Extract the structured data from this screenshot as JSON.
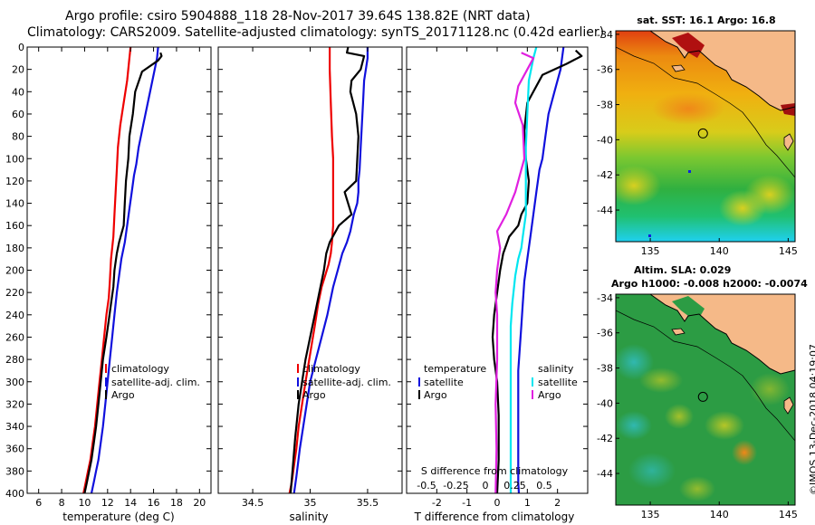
{
  "header": {
    "line1": "Argo profile: csiro 5904888_118 28-Nov-2017 39.64S 138.82E (NRT data)",
    "line2": "Climatology: CARS2009. Satellite-adjusted climatology: synTS_20171128.nc (0.42d earlier)"
  },
  "credit": "©IMOS 13-Dec-2018 04:19:07",
  "colors": {
    "climatology": "#ee0000",
    "satellite": "#1010dd",
    "argo": "#000000",
    "satellite_salinity": "#00e6f0",
    "argo_salinity": "#e020e0",
    "land": "#f5b988",
    "sla_water": "#2c9c44"
  },
  "chart_data": [
    {
      "type": "line",
      "name": "temperature-profile",
      "xlabel": "temperature (deg C)",
      "ylabel": "",
      "xlim": [
        5,
        21
      ],
      "ylim": [
        400,
        0
      ],
      "xticks": [
        6,
        8,
        10,
        12,
        14,
        16,
        18,
        20
      ],
      "yticks": [
        0,
        20,
        40,
        60,
        80,
        100,
        120,
        140,
        160,
        180,
        200,
        220,
        240,
        260,
        280,
        300,
        320,
        340,
        360,
        380,
        400
      ],
      "legend": [
        "climatology",
        "satellite-adj. clim.",
        "Argo"
      ],
      "series": [
        {
          "name": "climatology",
          "color": "#ee0000",
          "x": [
            14.0,
            13.9,
            13.7,
            13.4,
            13.1,
            12.9,
            12.8,
            12.7,
            12.6,
            12.5,
            12.3,
            12.2,
            12.1,
            11.9,
            11.7,
            11.5,
            11.3,
            11.1,
            10.9,
            10.7,
            10.5,
            10.3,
            10.1,
            9.9
          ],
          "y": [
            0,
            10,
            30,
            50,
            70,
            90,
            110,
            130,
            150,
            170,
            190,
            210,
            225,
            240,
            260,
            280,
            300,
            320,
            340,
            355,
            370,
            380,
            390,
            400
          ]
        },
        {
          "name": "satellite-adj. clim.",
          "color": "#1010dd",
          "x": [
            16.4,
            16.3,
            15.9,
            15.5,
            15.1,
            14.7,
            14.5,
            14.3,
            14.1,
            13.9,
            13.7,
            13.5,
            13.2,
            13.0,
            12.8,
            12.6,
            12.4,
            12.2,
            12.0,
            11.8,
            11.6,
            11.4,
            11.2,
            11.0,
            10.8,
            10.7,
            10.6
          ],
          "y": [
            0,
            10,
            30,
            50,
            70,
            90,
            105,
            115,
            130,
            145,
            160,
            175,
            190,
            205,
            220,
            240,
            260,
            280,
            300,
            320,
            340,
            355,
            370,
            380,
            390,
            395,
            400
          ]
        },
        {
          "name": "Argo",
          "color": "#000000",
          "x": [
            16.6,
            16.7,
            16.4,
            15.0,
            14.4,
            14.2,
            13.9,
            13.8,
            13.6,
            13.5,
            13.4,
            13.0,
            12.8,
            12.6,
            12.5,
            12.3,
            12.1,
            11.9,
            11.6,
            11.4,
            11.2,
            11.0,
            10.8,
            10.6,
            10.4,
            10.2,
            10.0
          ],
          "y": [
            5,
            8,
            12,
            22,
            40,
            60,
            80,
            100,
            120,
            140,
            160,
            175,
            185,
            200,
            215,
            230,
            245,
            260,
            280,
            300,
            320,
            340,
            355,
            370,
            380,
            390,
            400
          ]
        }
      ]
    },
    {
      "type": "line",
      "name": "salinity-profile",
      "xlabel": "salinity",
      "xlim": [
        34.2,
        35.8
      ],
      "ylim": [
        400,
        0
      ],
      "xticks": [
        34.5,
        35,
        35.5
      ],
      "legend": [
        "climatology",
        "satellite-adj. clim.",
        "Argo"
      ],
      "series": [
        {
          "name": "climatology",
          "color": "#ee0000",
          "x": [
            35.17,
            35.17,
            35.18,
            35.19,
            35.2,
            35.2,
            35.2,
            35.2,
            35.19,
            35.18,
            35.16,
            35.13,
            35.1,
            35.07,
            35.04,
            35.0,
            34.96,
            34.93,
            34.9,
            34.88,
            34.86,
            34.84,
            34.82
          ],
          "y": [
            0,
            20,
            50,
            80,
            100,
            120,
            140,
            160,
            175,
            185,
            195,
            205,
            215,
            230,
            250,
            275,
            300,
            320,
            340,
            360,
            375,
            390,
            400
          ]
        },
        {
          "name": "satellite-adj. clim.",
          "color": "#1010dd",
          "x": [
            35.5,
            35.5,
            35.47,
            35.46,
            35.45,
            35.44,
            35.43,
            35.42,
            35.42,
            35.41,
            35.38,
            35.35,
            35.32,
            35.28,
            35.24,
            35.2,
            35.15,
            35.1,
            35.05,
            35.0,
            34.97,
            34.94,
            34.91,
            34.88,
            34.86
          ],
          "y": [
            0,
            10,
            30,
            50,
            70,
            90,
            110,
            120,
            130,
            140,
            150,
            165,
            175,
            185,
            200,
            215,
            240,
            260,
            280,
            300,
            320,
            340,
            360,
            385,
            400
          ]
        },
        {
          "name": "Argo",
          "color": "#000000",
          "x": [
            35.33,
            35.32,
            35.47,
            35.44,
            35.36,
            35.35,
            35.4,
            35.42,
            35.4,
            35.3,
            35.36,
            35.25,
            35.17,
            35.14,
            35.12,
            35.08,
            35.04,
            35.0,
            34.96,
            34.93,
            34.9,
            34.87,
            34.85,
            34.83
          ],
          "y": [
            0,
            5,
            8,
            20,
            30,
            40,
            60,
            80,
            120,
            130,
            150,
            160,
            175,
            185,
            200,
            220,
            240,
            260,
            280,
            300,
            320,
            350,
            375,
            400
          ]
        }
      ]
    },
    {
      "type": "line",
      "name": "difference-profile",
      "xlabel": "T difference from climatology",
      "xlabel_top": "S difference from climatology",
      "xlim": [
        -3,
        3
      ],
      "ylim": [
        400,
        0
      ],
      "xticks": [
        -2,
        -1,
        0,
        1,
        2
      ],
      "xticks_top": [
        -0.5,
        -0.25,
        0,
        0.25,
        0.5
      ],
      "legend_temperature_title": "temperature",
      "legend_salinity_title": "salinity",
      "legend_items": [
        "satellite",
        "Argo"
      ],
      "series": [
        {
          "name": "temperature satellite",
          "color": "#1010dd",
          "x": [
            2.2,
            2.1,
            1.9,
            1.7,
            1.6,
            1.5,
            1.4,
            1.3,
            1.2,
            1.1,
            1.0,
            0.9,
            0.85,
            0.8,
            0.75,
            0.7,
            0.7,
            0.7,
            0.7,
            0.7,
            0.72
          ],
          "y": [
            0,
            20,
            40,
            60,
            80,
            100,
            110,
            130,
            150,
            170,
            190,
            210,
            230,
            250,
            270,
            290,
            310,
            330,
            360,
            390,
            400
          ]
        },
        {
          "name": "temperature Argo",
          "color": "#000000",
          "x": [
            2.6,
            2.8,
            2.3,
            1.5,
            1.0,
            0.9,
            0.95,
            1.05,
            1.0,
            0.8,
            0.7,
            0.4,
            0.2,
            0.1,
            0.0,
            -0.1,
            -0.15,
            -0.1,
            0.0,
            0.05,
            0.05,
            0.0
          ],
          "y": [
            3,
            8,
            15,
            25,
            50,
            75,
            100,
            120,
            140,
            150,
            160,
            170,
            185,
            200,
            220,
            240,
            260,
            280,
            300,
            330,
            370,
            400
          ]
        },
        {
          "name": "salinity satellite",
          "color": "#00e6f0",
          "x": [
            1.3,
            1.2,
            1.05,
            1.0,
            0.95,
            0.95,
            0.95,
            0.9,
            0.85,
            0.8,
            0.7,
            0.6,
            0.5,
            0.45,
            0.45,
            0.45,
            0.45,
            0.45,
            0.45
          ],
          "y": [
            0,
            10,
            30,
            60,
            90,
            120,
            150,
            160,
            170,
            180,
            190,
            205,
            230,
            250,
            280,
            310,
            340,
            370,
            400
          ]
        },
        {
          "name": "salinity Argo",
          "color": "#e020e0",
          "x": [
            0.8,
            1.2,
            1.0,
            0.7,
            0.6,
            0.85,
            0.9,
            0.6,
            0.3,
            0.0,
            0.1,
            0.0,
            -0.05,
            0.0,
            0.0,
            -0.05,
            -0.02,
            -0.05
          ],
          "y": [
            5,
            10,
            20,
            35,
            50,
            70,
            100,
            130,
            150,
            165,
            180,
            200,
            220,
            240,
            280,
            320,
            360,
            400
          ]
        }
      ]
    },
    {
      "type": "heatmap",
      "name": "sst-map",
      "title": "sat. SST: 16.1 Argo: 16.8",
      "xlim": [
        132.5,
        145.5
      ],
      "ylim": [
        -45.8,
        -33.8
      ],
      "xticks": [
        135,
        140,
        145
      ],
      "yticks": [
        -34,
        -36,
        -38,
        -40,
        -42,
        -44
      ],
      "float_lon": 138.82,
      "float_lat": -39.64,
      "colorscale": [
        "#1fd0f0",
        "#2ad86a",
        "#30b040",
        "#7cc830",
        "#c8d020",
        "#f0c010",
        "#f0a010",
        "#e07010",
        "#d04010",
        "#b01010",
        "#800808"
      ]
    },
    {
      "type": "heatmap",
      "name": "sla-map",
      "title": "Altim. SLA: 0.029",
      "subtitle": "Argo h1000: -0.008 h2000: -0.0074",
      "xlim": [
        132.5,
        145.5
      ],
      "ylim": [
        -45.8,
        -33.8
      ],
      "xticks": [
        135,
        140,
        145
      ],
      "yticks": [
        -34,
        -36,
        -38,
        -40,
        -42,
        -44
      ],
      "float_lon": 138.82,
      "float_lat": -39.64
    }
  ]
}
